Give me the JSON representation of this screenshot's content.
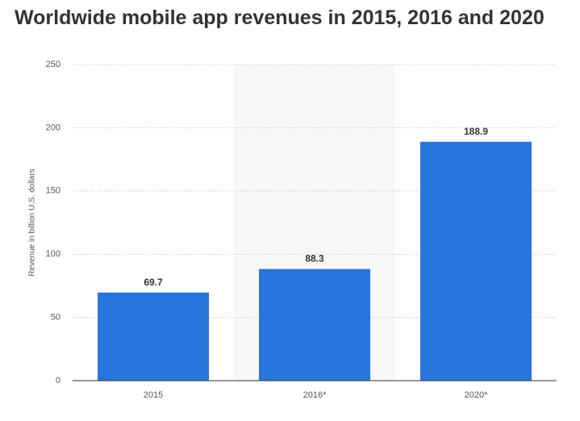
{
  "chart_data": {
    "type": "bar",
    "title": "Worldwide mobile app revenues in 2015, 2016 and 2020",
    "y_label": "Revenue in billion U.S. dollars",
    "categories": [
      "2015",
      "2016*",
      "2020*"
    ],
    "values": [
      69.7,
      88.3,
      188.9
    ],
    "color": "#2876dd",
    "ylim": [
      0,
      250
    ],
    "yticks": [
      0,
      50,
      100,
      150,
      200,
      250
    ],
    "grid": true
  }
}
